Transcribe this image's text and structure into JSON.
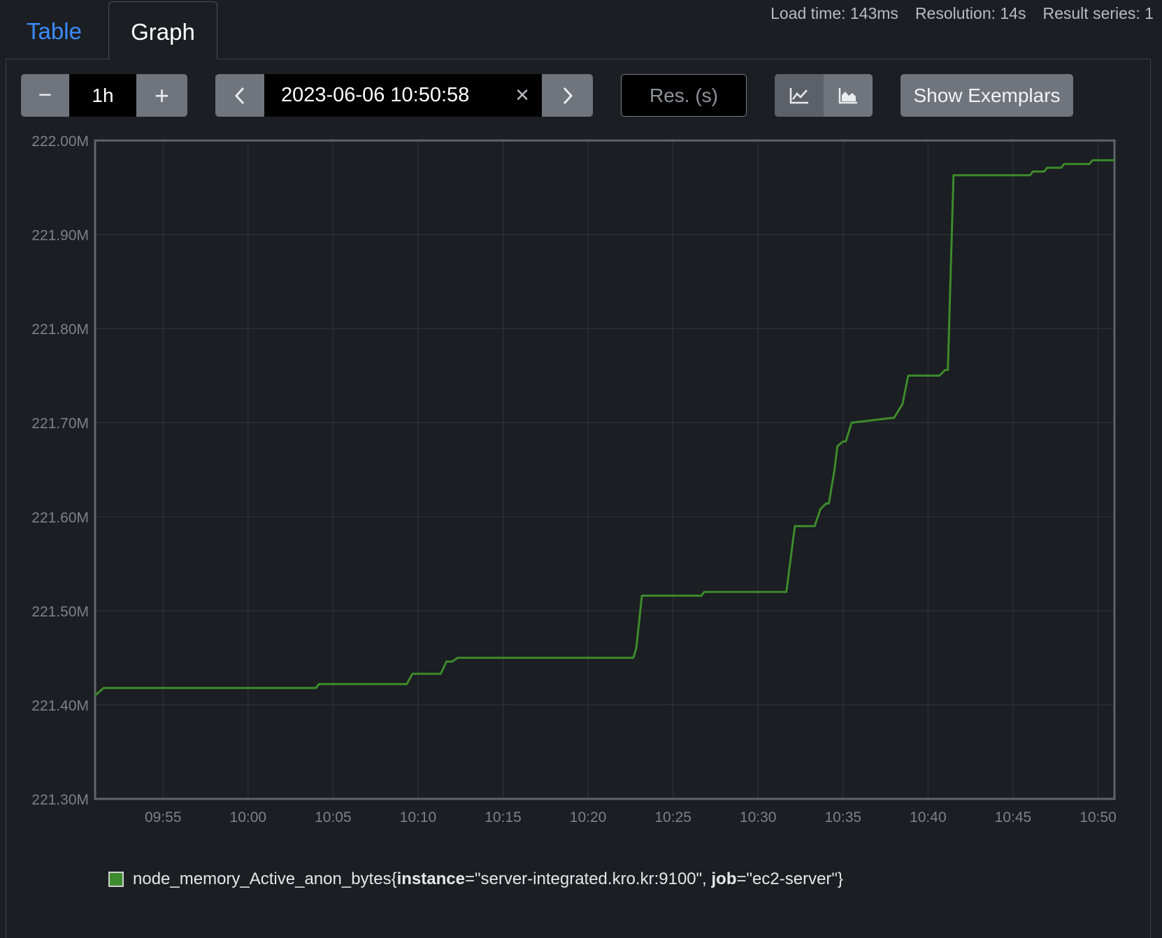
{
  "tabs": [
    {
      "label": "Table",
      "active": false
    },
    {
      "label": "Graph",
      "active": true
    }
  ],
  "stats": {
    "load_time": "Load time: 143ms",
    "resolution": "Resolution: 14s",
    "result_series": "Result series: 1"
  },
  "range": {
    "minus": "−",
    "value": "1h",
    "plus": "+"
  },
  "end_time": {
    "prev_icon": "chevron-left-icon",
    "value": "2023-06-06 10:50:58",
    "clear": "×",
    "next_icon": "chevron-right-icon"
  },
  "resolution_input": {
    "placeholder": "Res. (s)",
    "value": ""
  },
  "chart_type_buttons": {
    "line_icon": "line-chart-icon",
    "stacked_icon": "stacked-area-chart-icon",
    "active": "line"
  },
  "exemplars_button": {
    "label": "Show Exemplars"
  },
  "colors": {
    "series": "#3d8b2c",
    "background": "#1b1e22",
    "active_tab": "#3d8bfd"
  },
  "legend": {
    "metric": "node_memory_Active_anon_bytes",
    "open": "{",
    "label1_key": "instance",
    "label1_value": "=\"server-integrated.kro.kr:9100\", ",
    "label2_key": "job",
    "label2_value": "=\"ec2-server\"",
    "close": "}"
  },
  "chart_data": {
    "type": "line",
    "title": "",
    "xlabel": "",
    "ylabel": "",
    "ylim": [
      221.3,
      222.0
    ],
    "xlim": [
      "09:51:00",
      "10:50:58"
    ],
    "y_ticks": [
      "221.30M",
      "221.40M",
      "221.50M",
      "221.60M",
      "221.70M",
      "221.80M",
      "221.90M",
      "222.00M"
    ],
    "x_ticks": [
      "09:55",
      "10:00",
      "10:05",
      "10:10",
      "10:15",
      "10:20",
      "10:25",
      "10:30",
      "10:35",
      "10:40",
      "10:45",
      "10:50"
    ],
    "grid": true,
    "legend_position": "bottom-left",
    "series": [
      {
        "name": "node_memory_Active_anon_bytes{instance=\"server-integrated.kro.kr:9100\", job=\"ec2-server\"}",
        "x": [
          "09:51:00",
          "09:51:30",
          "09:54:00",
          "10:04:00",
          "10:04:10",
          "10:09:20",
          "10:09:40",
          "10:11:20",
          "10:11:40",
          "10:12:00",
          "10:12:20",
          "10:22:40",
          "10:22:50",
          "10:23:10",
          "10:23:20",
          "10:26:40",
          "10:26:50",
          "10:31:40",
          "10:32:10",
          "10:33:20",
          "10:33:40",
          "10:34:00",
          "10:34:10",
          "10:34:30",
          "10:34:40",
          "10:35:00",
          "10:35:10",
          "10:35:30",
          "10:37:50",
          "10:38:00",
          "10:38:30",
          "10:38:50",
          "10:40:40",
          "10:41:00",
          "10:41:10",
          "10:41:30",
          "10:41:40",
          "10:46:00",
          "10:46:10",
          "10:46:50",
          "10:47:00",
          "10:47:50",
          "10:48:00",
          "10:49:30",
          "10:49:40",
          "10:50:58"
        ],
        "y": [
          221.41,
          221.418,
          221.418,
          221.418,
          221.422,
          221.422,
          221.433,
          221.433,
          221.446,
          221.446,
          221.45,
          221.45,
          221.46,
          221.516,
          221.516,
          221.516,
          221.52,
          221.52,
          221.59,
          221.59,
          221.608,
          221.614,
          221.614,
          221.65,
          221.675,
          221.68,
          221.68,
          221.7,
          221.705,
          221.705,
          221.72,
          221.75,
          221.75,
          221.756,
          221.756,
          221.963,
          221.963,
          221.963,
          221.967,
          221.967,
          221.971,
          221.971,
          221.975,
          221.975,
          221.979,
          221.979
        ]
      }
    ]
  }
}
